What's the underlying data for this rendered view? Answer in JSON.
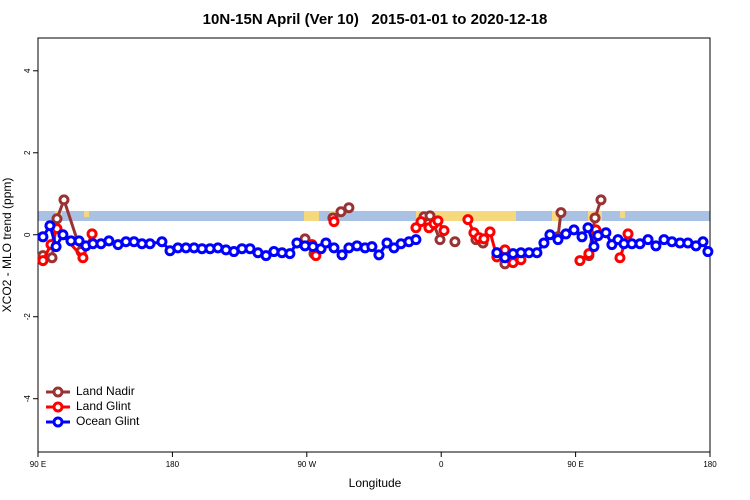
{
  "chart_data": {
    "type": "line",
    "title": "10N-15N April (Ver 10)   2015-01-01 to 2020-12-18",
    "xlabel": "Longitude",
    "ylabel": "XCO2 - MLO trend (ppm)",
    "xlim": [
      90,
      540
    ],
    "ylim": [
      -5.3,
      4.8
    ],
    "xticks": [
      {
        "value": 90,
        "label": "90 E"
      },
      {
        "value": 180,
        "label": "180"
      },
      {
        "value": 270,
        "label": "90 W"
      },
      {
        "value": 360,
        "label": "0"
      },
      {
        "value": 450,
        "label": "90 E"
      },
      {
        "value": 540,
        "label": "180"
      }
    ],
    "yticks": [
      -4,
      -2,
      0,
      2,
      4
    ],
    "legend": "bottom-left",
    "series": [
      {
        "name": "Land Nadir",
        "color": "#993333",
        "x": [
          93.3,
          99.4,
          102.7,
          107.4,
          118.8,
          null,
          268.8,
          274.8,
          null,
          287.5,
          292.9,
          298.2,
          null,
          348.5,
          352.5,
          359.2,
          null,
          369.2,
          null,
          383.3,
          388.0,
          null,
          397.3,
          402.7,
          408.1,
          null,
          438.2,
          440.2,
          null,
          458.9,
          463.0,
          467.0
        ],
        "values": [
          -0.51,
          -0.56,
          0.39,
          0.85,
          -0.41,
          null,
          -0.1,
          -0.46,
          null,
          0.41,
          0.56,
          0.66,
          null,
          0.44,
          0.46,
          -0.12,
          null,
          -0.17,
          null,
          -0.12,
          -0.2,
          null,
          -0.44,
          -0.71,
          -0.63,
          null,
          -0.05,
          0.54,
          null,
          -0.51,
          0.41,
          0.85
        ]
      },
      {
        "name": "Land Glint",
        "color": "#ff0000",
        "x": [
          93.3,
          98.7,
          102.7,
          120.1,
          126.2,
          null,
          273.5,
          276.1,
          null,
          288.2,
          null,
          343.1,
          346.5,
          351.8,
          355.2,
          357.8,
          361.9,
          null,
          377.9,
          381.9,
          385.3,
          388.6,
          392.7,
          397.3,
          402.7,
          408.1,
          413.4,
          null,
          452.9,
          458.9,
          463.6,
          465.0,
          null,
          479.7,
          485.1
        ],
        "values": [
          -0.63,
          -0.24,
          0.15,
          -0.56,
          0.02,
          null,
          -0.24,
          -0.51,
          null,
          0.32,
          null,
          0.17,
          0.32,
          0.17,
          0.27,
          0.34,
          0.1,
          null,
          0.37,
          0.05,
          -0.07,
          -0.1,
          0.07,
          -0.54,
          -0.37,
          -0.68,
          -0.61,
          null,
          -0.63,
          -0.46,
          0.12,
          -0.02,
          null,
          -0.56,
          0.02
        ]
      },
      {
        "name": "Ocean Glint",
        "color": "#0000ff",
        "x": [
          93.3,
          98.0,
          102.1,
          106.7,
          112.1,
          117.5,
          122.1,
          126.8,
          132.2,
          137.5,
          143.6,
          148.9,
          154.3,
          159.6,
          165.0,
          173.0,
          178.4,
          183.7,
          189.1,
          194.5,
          199.8,
          205.2,
          210.5,
          215.9,
          221.2,
          226.6,
          232.0,
          237.3,
          242.7,
          248.0,
          253.4,
          258.7,
          263.4,
          268.8,
          274.1,
          279.5,
          282.8,
          288.2,
          293.6,
          298.2,
          303.6,
          309.0,
          313.6,
          318.3,
          323.7,
          328.4,
          333.1,
          338.4,
          343.1,
          null,
          397.3,
          402.7,
          408.1,
          413.4,
          418.8,
          424.1,
          428.8,
          432.8,
          438.2,
          443.5,
          448.9,
          454.3,
          458.3,
          462.3,
          465.0,
          470.3,
          474.3,
          478.4,
          482.4,
          487.7,
          493.1,
          498.5,
          503.8,
          509.2,
          514.5,
          519.9,
          525.2,
          530.6,
          535.3,
          538.6
        ],
        "values": [
          -0.05,
          0.22,
          -0.29,
          0,
          -0.15,
          -0.15,
          -0.27,
          -0.22,
          -0.22,
          -0.15,
          -0.24,
          -0.17,
          -0.17,
          -0.22,
          -0.22,
          -0.17,
          -0.39,
          -0.32,
          -0.32,
          -0.32,
          -0.34,
          -0.34,
          -0.32,
          -0.37,
          -0.41,
          -0.34,
          -0.34,
          -0.44,
          -0.51,
          -0.41,
          -0.44,
          -0.46,
          -0.2,
          -0.27,
          -0.29,
          -0.34,
          -0.2,
          -0.32,
          -0.49,
          -0.32,
          -0.27,
          -0.32,
          -0.29,
          -0.49,
          -0.2,
          -0.32,
          -0.22,
          -0.17,
          -0.12,
          null,
          -0.44,
          -0.56,
          -0.46,
          -0.44,
          -0.44,
          -0.44,
          -0.2,
          0,
          -0.12,
          0.02,
          0.12,
          -0.05,
          0.17,
          -0.29,
          -0.02,
          0.05,
          -0.24,
          -0.12,
          -0.22,
          -0.22,
          -0.22,
          -0.12,
          -0.27,
          -0.12,
          -0.17,
          -0.2,
          -0.2,
          -0.27,
          -0.17,
          -0.41
        ]
      }
    ]
  }
}
